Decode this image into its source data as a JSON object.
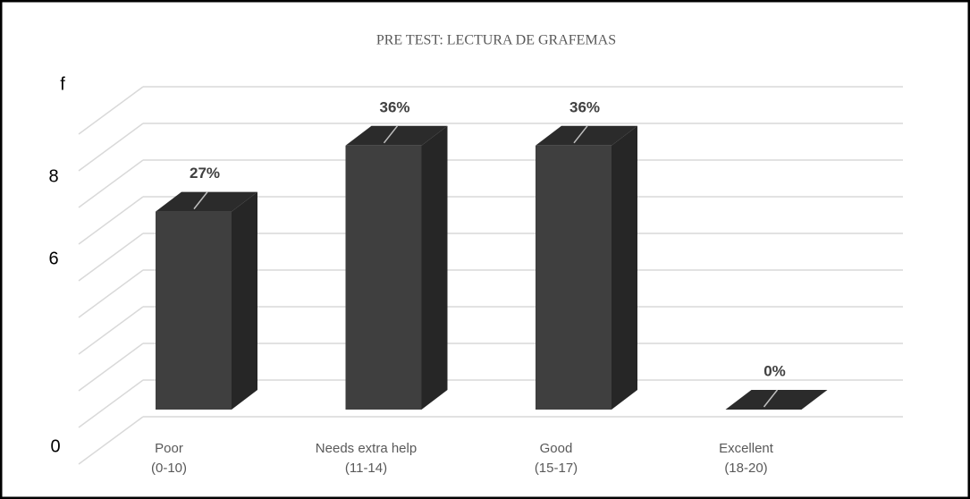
{
  "chart_data": {
    "type": "bar3d",
    "title": "PRE TEST: LECTURA DE GRAFEMAS",
    "y_axis_texts": [
      "f",
      "8",
      "6",
      "0"
    ],
    "categories": [
      [
        "Poor",
        "(0-10)"
      ],
      [
        "Needs extra help",
        "(11-14)"
      ],
      [
        "Good",
        "(15-17)"
      ],
      [
        "Excellent",
        "(18-20)"
      ]
    ],
    "values": [
      27,
      36,
      36,
      0
    ],
    "value_labels": [
      "27%",
      "36%",
      "36%",
      "0%"
    ],
    "color": "#3f3f3f",
    "ylim": [
      0,
      45
    ],
    "yticks": [
      0,
      5,
      10,
      15,
      20,
      25,
      30,
      35,
      40,
      45
    ],
    "grid": true
  }
}
